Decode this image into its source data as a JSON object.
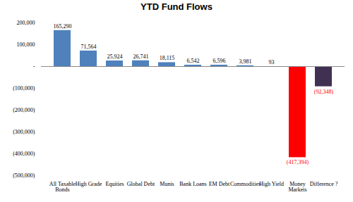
{
  "chart_data": {
    "type": "bar",
    "title": "YTD Fund Flows",
    "categories": [
      "All Taxable Bonds",
      "High Grade",
      "Equities",
      "Global Debt",
      "Munis",
      "Bank Loans",
      "EM Debt",
      "Commodities",
      "High Yield",
      "Money Markets",
      "Difference ?"
    ],
    "values": [
      165290,
      71564,
      25924,
      26741,
      18115,
      6542,
      6596,
      3981,
      93,
      -417394,
      -92348
    ],
    "value_labels": [
      "165,290",
      "71,564",
      "25,924",
      "26,741",
      "18,115",
      "6,542",
      "6,596",
      "3,981",
      "93",
      "(417,394)",
      "(92,348)"
    ],
    "colors": [
      "#4f81bd",
      "#4f81bd",
      "#4f81bd",
      "#4f81bd",
      "#4f81bd",
      "#4f81bd",
      "#4f81bd",
      "#4f81bd",
      "#4f81bd",
      "#ff0000",
      "#403152"
    ],
    "data_labels": true,
    "grid": false,
    "ylim": [
      -500000,
      200000
    ],
    "yticks": [
      {
        "value": -500000,
        "label": "(500,000)"
      },
      {
        "value": -400000,
        "label": "(400,000)"
      },
      {
        "value": -300000,
        "label": "(300,000)"
      },
      {
        "value": -200000,
        "label": "(200,000)"
      },
      {
        "value": -100000,
        "label": "(100,000)"
      },
      {
        "value": 0,
        "label": "-"
      },
      {
        "value": 100000,
        "label": "100,000"
      },
      {
        "value": 200000,
        "label": "200,000"
      }
    ]
  }
}
